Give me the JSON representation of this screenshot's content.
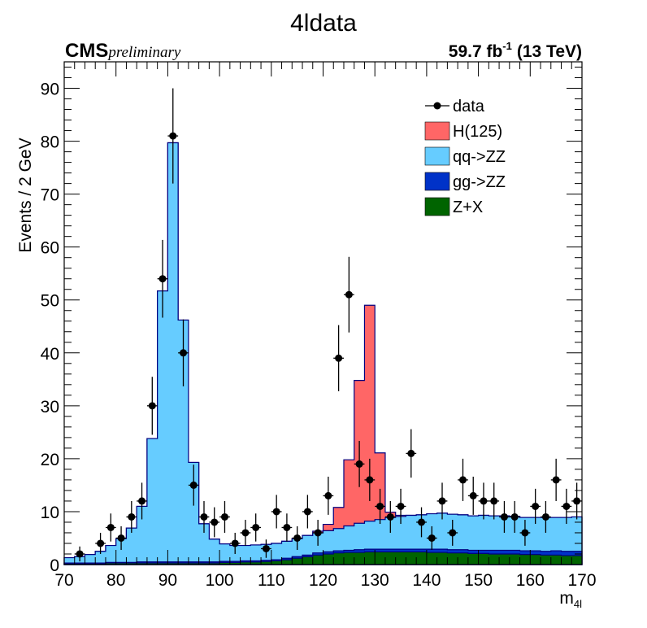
{
  "chart_data": {
    "type": "histogram",
    "title": "4ldata",
    "experiment": "CMS",
    "status": "preliminary",
    "lumi_label": "59.7 fb",
    "lumi_sup": "-1",
    "energy_label": "(13 TeV)",
    "xlabel_main": "m",
    "xlabel_sub": "4l",
    "ylabel": "Events / 2 GeV",
    "xlim": [
      70,
      170
    ],
    "ylim": [
      0,
      95
    ],
    "x_ticks": [
      70,
      80,
      90,
      100,
      110,
      120,
      130,
      140,
      150,
      160,
      170
    ],
    "y_ticks": [
      0,
      10,
      20,
      30,
      40,
      50,
      60,
      70,
      80,
      90
    ],
    "bin_width": 2,
    "bin_edges_start": 70,
    "legend_position": "top-right",
    "stack": [
      {
        "name": "Z+X",
        "color": "#006400",
        "values": [
          0.2,
          0.2,
          0.2,
          0.2,
          0.3,
          0.3,
          0.3,
          0.3,
          0.3,
          0.3,
          0.3,
          0.3,
          0.3,
          0.3,
          0.3,
          0.4,
          0.4,
          0.5,
          0.5,
          0.6,
          0.7,
          0.9,
          1.2,
          1.5,
          1.8,
          2.0,
          2.2,
          2.3,
          2.3,
          2.4,
          2.4,
          2.4,
          2.4,
          2.4,
          2.4,
          2.3,
          2.3,
          2.2,
          2.2,
          2.1,
          2.1,
          2.0,
          2.0,
          2.0,
          1.9,
          1.9,
          1.8,
          1.8,
          1.7,
          1.7
        ]
      },
      {
        "name": "gg->ZZ",
        "color": "#0032c8",
        "values": [
          0.1,
          0.1,
          0.1,
          0.1,
          0.1,
          0.1,
          0.1,
          0.2,
          0.2,
          0.2,
          0.2,
          0.2,
          0.2,
          0.2,
          0.2,
          0.2,
          0.2,
          0.2,
          0.2,
          0.2,
          0.2,
          0.3,
          0.3,
          0.3,
          0.4,
          0.4,
          0.4,
          0.4,
          0.5,
          0.5,
          0.5,
          0.5,
          0.5,
          0.5,
          0.5,
          0.6,
          0.6,
          0.6,
          0.6,
          0.6,
          0.6,
          0.7,
          0.7,
          0.7,
          0.7,
          0.7,
          0.7,
          0.8,
          0.8,
          0.8
        ]
      },
      {
        "name": "qq->ZZ",
        "color": "#66ccff",
        "values": [
          1.0,
          1.2,
          1.6,
          2.2,
          3.2,
          4.5,
          6.5,
          10.5,
          23.3,
          51.2,
          79.2,
          45.7,
          18.8,
          7.2,
          4.3,
          3.3,
          3.0,
          2.9,
          3.0,
          3.0,
          3.1,
          3.2,
          3.4,
          3.7,
          3.8,
          4.0,
          4.2,
          4.6,
          5.0,
          5.3,
          5.6,
          6.0,
          6.2,
          6.4,
          6.5,
          6.7,
          6.8,
          6.7,
          6.6,
          6.5,
          6.6,
          6.5,
          6.5,
          6.4,
          6.3,
          6.3,
          6.4,
          6.3,
          6.4,
          6.5
        ]
      },
      {
        "name": "H(125)",
        "color": "#ff6666",
        "values": [
          0,
          0,
          0,
          0,
          0,
          0,
          0,
          0,
          0,
          0,
          0,
          0,
          0,
          0,
          0,
          0,
          0,
          0,
          0,
          0,
          0,
          0,
          0,
          0,
          0.3,
          1.2,
          4.0,
          12.5,
          27.0,
          40.8,
          12.6,
          1.0,
          0.2,
          0,
          0,
          0,
          0,
          0,
          0,
          0,
          0,
          0,
          0,
          0,
          0,
          0,
          0,
          0,
          0,
          0
        ]
      }
    ],
    "data_series": {
      "name": "data",
      "x": [
        73,
        77,
        79,
        81,
        83,
        85,
        87,
        89,
        91,
        93,
        95,
        97,
        99,
        101,
        103,
        105,
        107,
        109,
        111,
        113,
        115,
        117,
        119,
        121,
        123,
        125,
        127,
        129,
        131,
        133,
        135,
        137,
        139,
        141,
        143,
        145,
        147,
        149,
        151,
        153,
        155,
        157,
        159,
        161,
        163,
        165,
        167,
        169
      ],
      "y": [
        2,
        4,
        7,
        5,
        9,
        12,
        30,
        54,
        81,
        40,
        15,
        9,
        8,
        9,
        4,
        6,
        7,
        3,
        10,
        7,
        5,
        10,
        6,
        13,
        39,
        51,
        19,
        16,
        11,
        9,
        11,
        21,
        8,
        5,
        12,
        6,
        16,
        13,
        12,
        12,
        9,
        9,
        6,
        11,
        9,
        16,
        11,
        12
      ]
    }
  }
}
